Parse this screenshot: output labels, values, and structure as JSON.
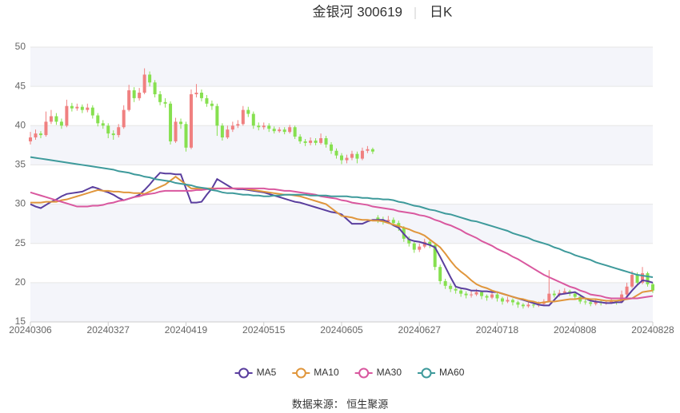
{
  "chart_data": {
    "type": "candlestick",
    "title": "金银河 300619",
    "period": "日K",
    "source": "数据来源： 恒生聚源",
    "categories": [
      "20240306",
      null,
      null,
      null,
      null,
      null,
      null,
      null,
      null,
      null,
      null,
      null,
      null,
      null,
      null,
      "20240327",
      null,
      null,
      null,
      null,
      null,
      null,
      null,
      null,
      null,
      null,
      null,
      null,
      null,
      null,
      "20240419",
      null,
      null,
      null,
      null,
      null,
      null,
      null,
      null,
      null,
      null,
      null,
      null,
      null,
      null,
      "20240515",
      null,
      null,
      null,
      null,
      null,
      null,
      null,
      null,
      null,
      null,
      null,
      null,
      null,
      null,
      "20240605",
      null,
      null,
      null,
      null,
      null,
      null,
      null,
      null,
      null,
      null,
      null,
      null,
      null,
      null,
      "20240627",
      null,
      null,
      null,
      null,
      null,
      null,
      null,
      null,
      null,
      null,
      null,
      null,
      null,
      null,
      "20240718",
      null,
      null,
      null,
      null,
      null,
      null,
      null,
      null,
      null,
      null,
      null,
      null,
      null,
      null,
      "20240808",
      null,
      null,
      null,
      null,
      null,
      null,
      null,
      null,
      null,
      null,
      null,
      null,
      null,
      null,
      "20240828"
    ],
    "candles": {
      "up_color": "#f08080",
      "down_color": "#86e04f",
      "open": [
        38.0,
        38.5,
        39,
        38.8,
        40.5,
        41.2,
        40.5,
        40.0,
        42.5,
        42.2,
        42.4,
        42.0,
        42.3,
        41.3,
        40.3,
        40.0,
        39.0,
        38.8,
        39.8,
        42.0,
        44.5,
        43.5,
        44.2,
        46.5,
        45.5,
        44.0,
        43.0,
        42.8,
        38.0,
        40.5,
        40.2,
        37.2,
        44.0,
        44.2,
        43.5,
        42.8,
        42.5,
        40.0,
        38.5,
        39.5,
        40.0,
        40.2,
        42.0,
        41.5,
        40.0,
        39.8,
        40.0,
        39.6,
        39.3,
        39.5,
        39.2,
        39.8,
        38.6,
        38.0,
        37.8,
        38.1,
        37.8,
        38.4,
        37.6,
        36.8,
        36.2,
        35.6,
        35.9,
        36.4,
        35.8,
        36.8,
        37.0,
        28.3,
        28.0,
        27.8,
        28.0,
        27.6,
        27.0,
        25.6,
        25.0,
        24.2,
        24.6,
        25.2,
        24.8,
        22.0,
        20.2,
        19.6,
        19.2,
        19.0,
        18.6,
        18.4,
        18.5,
        18.8,
        18.3,
        18.1,
        18.5,
        18.0,
        17.6,
        17.8,
        17.5,
        17.2,
        17.0,
        17.2,
        17.1,
        17.3,
        17.6,
        18.6,
        18.4,
        18.7,
        18.9,
        18.6,
        18.2,
        17.6,
        17.5,
        17.3,
        17.6,
        17.4,
        17.5,
        17.6,
        17.5,
        18.5,
        19.5,
        21.0,
        20.0,
        21.2,
        19.8
      ],
      "high": [
        39.2,
        39.5,
        39.3,
        41.8,
        42.0,
        41.6,
        40.9,
        43.3,
        42.9,
        42.8,
        42.7,
        42.8,
        42.6,
        41.6,
        40.7,
        40.3,
        39.4,
        40.2,
        42.6,
        45.2,
        44.9,
        44.8,
        47.3,
        46.9,
        45.8,
        44.4,
        43.5,
        43.1,
        41.0,
        40.9,
        40.5,
        44.6,
        45.3,
        44.6,
        43.9,
        43.2,
        42.8,
        40.3,
        40.0,
        40.5,
        40.7,
        42.5,
        42.4,
        41.8,
        40.4,
        40.4,
        40.3,
        39.9,
        39.8,
        39.8,
        40.1,
        40.0,
        38.9,
        38.3,
        38.5,
        38.4,
        39.0,
        38.7,
        37.9,
        37.1,
        36.5,
        36.3,
        36.8,
        36.7,
        37.2,
        37.4,
        37.2,
        28.6,
        28.4,
        28.5,
        28.3,
        27.9,
        27.2,
        25.9,
        25.3,
        25.0,
        25.6,
        25.5,
        25.0,
        22.3,
        20.5,
        19.9,
        19.5,
        19.3,
        18.9,
        18.9,
        19.2,
        19.0,
        18.5,
        18.9,
        18.7,
        18.2,
        18.2,
        18.0,
        17.7,
        17.4,
        17.5,
        17.4,
        17.6,
        17.9,
        21.6,
        19.0,
        19.1,
        19.3,
        19.1,
        18.8,
        18.4,
        17.9,
        17.8,
        17.9,
        17.8,
        17.8,
        17.9,
        17.8,
        19.0,
        20.0,
        21.5,
        21.3,
        22.0,
        21.4,
        20.0
      ],
      "low": [
        37.6,
        38.2,
        38.4,
        38.6,
        40.2,
        40.1,
        39.6,
        39.8,
        41.8,
        41.9,
        41.6,
        41.7,
        40.9,
        39.9,
        39.6,
        38.4,
        38.2,
        38.5,
        39.6,
        41.8,
        43.0,
        43.2,
        44.0,
        45.0,
        43.6,
        42.6,
        42.3,
        37.6,
        37.8,
        39.6,
        36.7,
        37.0,
        43.6,
        43.1,
        42.4,
        42.0,
        38.7,
        38.1,
        38.3,
        39.2,
        39.7,
        40.0,
        41.1,
        39.6,
        39.4,
        39.5,
        39.2,
        39.0,
        39.1,
        38.9,
        39.0,
        38.3,
        37.7,
        37.4,
        37.5,
        37.5,
        37.6,
        37.2,
        36.4,
        35.8,
        35.1,
        35.2,
        35.6,
        35.2,
        35.6,
        36.5,
        36.4,
        27.6,
        27.4,
        27.5,
        27.2,
        26.6,
        25.2,
        24.6,
        23.8,
        23.9,
        24.4,
        24.4,
        21.6,
        19.8,
        19.2,
        18.8,
        18.6,
        18.2,
        18.0,
        18.1,
        18.3,
        17.9,
        17.7,
        17.9,
        17.6,
        17.2,
        17.4,
        17.1,
        16.8,
        16.7,
        16.8,
        16.8,
        16.9,
        17.1,
        17.5,
        18.1,
        18.2,
        18.5,
        18.3,
        17.8,
        17.3,
        17.2,
        17.0,
        17.1,
        17.1,
        17.2,
        17.3,
        17.2,
        17.4,
        18.3,
        19.3,
        19.7,
        19.8,
        19.5,
        18.7
      ],
      "close": [
        38.5,
        39,
        38.8,
        40.5,
        41.2,
        40.5,
        40.0,
        42.5,
        42.2,
        42.4,
        42.0,
        42.3,
        41.3,
        40.3,
        40.0,
        39.0,
        38.8,
        39.8,
        42.0,
        44.5,
        43.5,
        44.2,
        46.5,
        45.5,
        44.0,
        43.0,
        42.8,
        38.0,
        40.5,
        40.2,
        37.2,
        44.0,
        44.2,
        43.5,
        42.8,
        42.5,
        40.0,
        38.5,
        39.5,
        40.0,
        40.2,
        42.0,
        41.5,
        40.0,
        39.8,
        40.0,
        39.6,
        39.3,
        39.5,
        39.2,
        39.8,
        38.6,
        38.0,
        37.8,
        38.1,
        37.8,
        38.4,
        37.6,
        36.8,
        36.2,
        35.6,
        35.9,
        36.4,
        35.8,
        36.8,
        37.0,
        36.7,
        28.0,
        27.8,
        28.0,
        27.6,
        27.0,
        25.6,
        25.0,
        24.2,
        24.6,
        25.2,
        24.8,
        22.0,
        20.2,
        19.6,
        19.2,
        19.0,
        18.6,
        18.4,
        18.5,
        18.8,
        18.3,
        18.1,
        18.5,
        18.0,
        17.6,
        17.8,
        17.5,
        17.2,
        17.0,
        17.2,
        17.1,
        17.3,
        17.6,
        18.6,
        18.4,
        18.7,
        18.9,
        18.6,
        18.2,
        17.6,
        17.5,
        17.3,
        17.6,
        17.4,
        17.5,
        17.6,
        17.5,
        18.5,
        19.5,
        21.0,
        20.0,
        21.2,
        19.8,
        19.0
      ]
    },
    "series": [
      {
        "name": "MA5",
        "color": "#5a3e9e",
        "values": [
          30.0,
          29.7,
          29.5,
          29.9,
          30.3,
          30.6,
          31.0,
          31.3,
          31.4,
          31.5,
          31.6,
          31.9,
          32.2,
          32.0,
          31.7,
          31.5,
          31.2,
          30.8,
          30.5,
          30.7,
          30.9,
          31.2,
          31.8,
          32.5,
          33.3,
          34.0,
          33.9,
          33.9,
          33.8,
          33.8,
          32.0,
          30.2,
          30.2,
          30.3,
          31.2,
          32.0,
          33.2,
          32.8,
          32.4,
          32.0,
          31.9,
          31.9,
          31.8,
          31.7,
          31.6,
          31.5,
          31.3,
          31.1,
          30.9,
          30.7,
          30.5,
          30.3,
          30.2,
          30.0,
          29.8,
          29.6,
          29.4,
          29.2,
          29.0,
          28.9,
          28.7,
          28.1,
          27.5,
          27.5,
          27.5,
          27.8,
          28.0,
          28.0,
          28.0,
          27.7,
          27.3,
          27.0,
          26.2,
          25.5,
          25.3,
          25.2,
          25.0,
          24.8,
          24.5,
          23.3,
          22.0,
          20.7,
          19.5,
          19.3,
          19.2,
          19.0,
          19.0,
          18.9,
          18.9,
          18.8,
          18.8,
          18.6,
          18.4,
          18.2,
          18.0,
          17.8,
          17.6,
          17.4,
          17.2,
          17.1,
          17.1,
          17.8,
          18.5,
          18.6,
          18.7,
          18.8,
          18.4,
          18.0,
          17.7,
          17.6,
          17.5,
          17.4,
          17.4,
          17.5,
          17.5,
          18.2,
          19.0,
          19.7,
          20.3,
          20.2,
          20.0
        ]
      },
      {
        "name": "MA10",
        "color": "#e0963c",
        "values": [
          30.2,
          30.2,
          30.2,
          30.3,
          30.3,
          30.3,
          30.5,
          30.6,
          30.8,
          31.0,
          31.2,
          31.4,
          31.6,
          31.8,
          31.7,
          31.7,
          31.6,
          31.6,
          31.5,
          31.5,
          31.4,
          31.4,
          31.3,
          31.6,
          31.9,
          32.2,
          32.5,
          33.0,
          33.5,
          33.0,
          32.5,
          32.0,
          32.0,
          32.0,
          32.0,
          32.0,
          32.0,
          32.0,
          32.0,
          32.0,
          32.0,
          32.0,
          31.9,
          31.8,
          31.7,
          31.6,
          31.5,
          31.4,
          31.3,
          31.2,
          31.2,
          31.1,
          31.0,
          30.8,
          30.6,
          30.4,
          30.2,
          30.0,
          29.5,
          29.0,
          28.5,
          28.4,
          28.3,
          28.1,
          28.0,
          28.0,
          27.9,
          27.9,
          27.8,
          27.6,
          27.4,
          27.2,
          27.0,
          26.8,
          26.5,
          26.3,
          26.0,
          25.5,
          25.0,
          24.5,
          23.7,
          22.8,
          22.0,
          21.4,
          20.9,
          20.3,
          19.8,
          19.5,
          19.3,
          19.0,
          18.8,
          18.6,
          18.4,
          18.2,
          18.0,
          17.9,
          17.7,
          17.6,
          17.4,
          17.5,
          17.6,
          17.6,
          17.7,
          17.8,
          17.9,
          17.9,
          18.0,
          18.0,
          17.9,
          17.9,
          17.8,
          17.7,
          17.7,
          17.7,
          17.8,
          17.9,
          18.0,
          18.4,
          18.8,
          18.9,
          19.0
        ]
      },
      {
        "name": "MA30",
        "color": "#d9589f",
        "values": [
          31.5,
          31.3,
          31.1,
          30.9,
          30.7,
          30.5,
          30.3,
          30.1,
          29.9,
          29.7,
          29.7,
          29.7,
          29.8,
          29.8,
          29.9,
          30.1,
          30.2,
          30.4,
          30.5,
          30.7,
          30.9,
          31.0,
          31.2,
          31.3,
          31.4,
          31.6,
          31.7,
          31.7,
          31.7,
          31.7,
          31.7,
          31.7,
          31.8,
          31.8,
          31.9,
          31.9,
          32.0,
          32.0,
          32.0,
          32.0,
          32.0,
          32.0,
          32.0,
          32.0,
          32.0,
          32.0,
          31.9,
          31.9,
          31.8,
          31.7,
          31.7,
          31.6,
          31.5,
          31.4,
          31.3,
          31.2,
          31.0,
          30.9,
          30.8,
          30.7,
          30.5,
          30.4,
          30.2,
          30.1,
          30.0,
          29.9,
          29.7,
          29.6,
          29.5,
          29.4,
          29.3,
          29.1,
          29.0,
          28.9,
          28.8,
          28.6,
          28.5,
          28.3,
          28.0,
          27.8,
          27.5,
          27.3,
          27.0,
          26.7,
          26.3,
          26.0,
          25.7,
          25.3,
          25.0,
          24.7,
          24.3,
          24.0,
          23.7,
          23.3,
          23.0,
          22.6,
          22.2,
          21.8,
          21.4,
          21.0,
          20.7,
          20.4,
          20.1,
          19.8,
          19.5,
          19.3,
          19.0,
          18.8,
          18.5,
          18.4,
          18.3,
          18.1,
          18.0,
          18.0,
          18.0,
          18.0,
          18.0,
          18.0,
          18.1,
          18.2,
          18.3
        ]
      },
      {
        "name": "MA60",
        "color": "#3e9a9b",
        "values": [
          36,
          35.9,
          35.8,
          35.7,
          35.6,
          35.5,
          35.4,
          35.3,
          35.2,
          35.1,
          35.0,
          34.9,
          34.8,
          34.7,
          34.6,
          34.5,
          34.4,
          34.2,
          34.1,
          34.0,
          33.8,
          33.7,
          33.5,
          33.4,
          33.2,
          33.1,
          33.0,
          32.9,
          32.7,
          32.6,
          32.5,
          32.4,
          32.2,
          32.1,
          32.0,
          31.8,
          31.7,
          31.5,
          31.4,
          31.4,
          31.3,
          31.2,
          31.2,
          31.1,
          31.1,
          31.0,
          31.0,
          31.1,
          31.1,
          31.2,
          31.2,
          31.2,
          31.2,
          31.2,
          31.1,
          31.1,
          31.1,
          31.1,
          31.0,
          31.0,
          31.0,
          31.0,
          30.9,
          30.9,
          30.8,
          30.8,
          30.7,
          30.7,
          30.6,
          30.6,
          30.5,
          30.3,
          30.2,
          30.0,
          29.8,
          29.7,
          29.5,
          29.3,
          29.2,
          29.0,
          28.8,
          28.7,
          28.5,
          28.3,
          28.1,
          27.9,
          27.8,
          27.6,
          27.4,
          27.2,
          27.0,
          26.8,
          26.6,
          26.3,
          26.1,
          25.9,
          25.7,
          25.4,
          25.2,
          25.0,
          24.8,
          24.5,
          24.3,
          24.0,
          23.8,
          23.5,
          23.3,
          23.1,
          22.9,
          22.6,
          22.4,
          22.2,
          22.0,
          21.8,
          21.6,
          21.4,
          21.2,
          21.0,
          20.9,
          20.8,
          20.7
        ]
      }
    ],
    "ylim": [
      15,
      50
    ],
    "yticks": [
      15,
      20,
      25,
      30,
      35,
      40,
      45,
      50
    ],
    "grid": true,
    "legend": "bottom"
  }
}
